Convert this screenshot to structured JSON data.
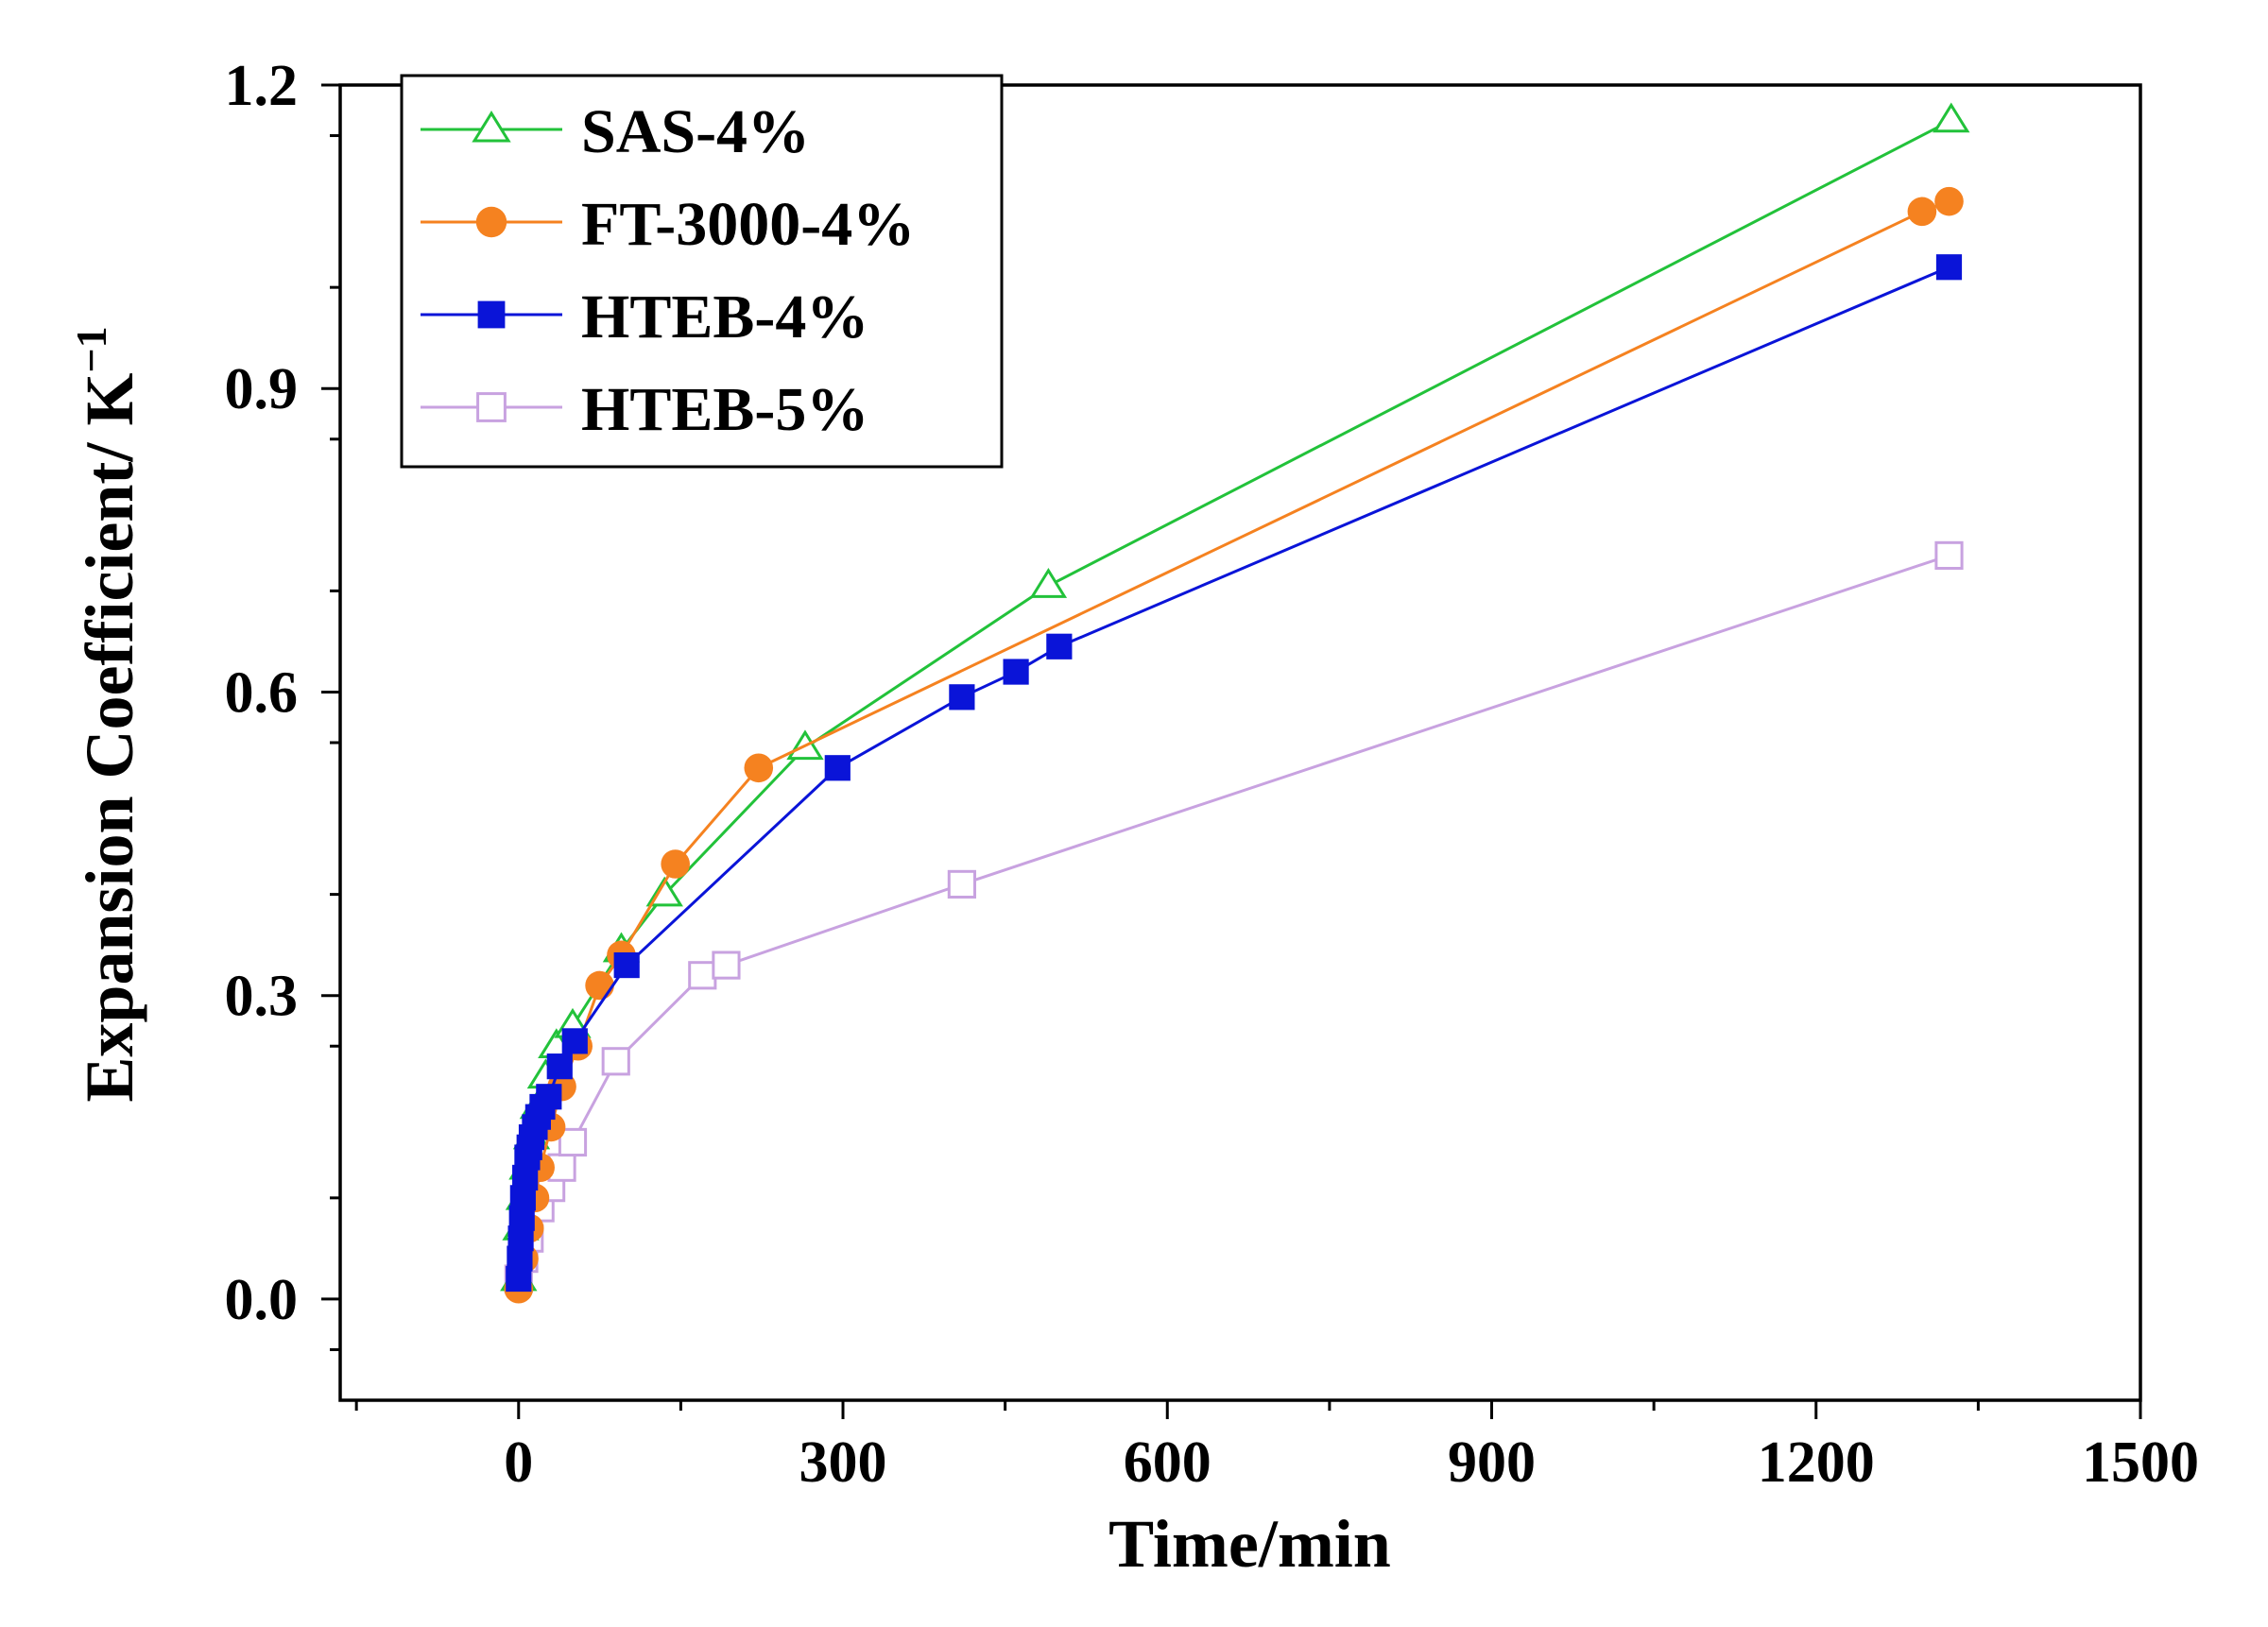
{
  "chart_data": {
    "type": "line",
    "title": "",
    "xlabel": "Time/min",
    "ylabel_main": "Expansion Coefficient/ K",
    "ylabel_sup": "−1",
    "xlim": [
      -165,
      1500
    ],
    "ylim": [
      -0.1,
      1.2
    ],
    "x_ticks": [
      0,
      300,
      600,
      900,
      1200,
      1500
    ],
    "y_ticks": [
      0.0,
      0.3,
      0.6,
      0.9,
      1.2
    ],
    "x_tick_labels": [
      "0",
      "300",
      "600",
      "900",
      "1200",
      "1500"
    ],
    "y_tick_labels": [
      "0.0",
      "0.3",
      "0.6",
      "0.9",
      "1.2"
    ],
    "legend_position": "top-left",
    "series": [
      {
        "name": "SAS-4%",
        "color": "#22c23a",
        "marker": "triangle-open",
        "x": [
          0,
          2,
          5,
          8,
          12,
          18,
          25,
          35,
          50,
          95,
          135,
          265,
          490,
          1325
        ],
        "y": [
          0.02,
          0.07,
          0.1,
          0.13,
          0.16,
          0.19,
          0.22,
          0.25,
          0.27,
          0.345,
          0.4,
          0.545,
          0.705,
          1.165
        ]
      },
      {
        "name": "FT-3000-4%",
        "color": "#f58220",
        "marker": "circle-filled",
        "x": [
          0,
          5,
          10,
          15,
          20,
          30,
          40,
          55,
          75,
          95,
          145,
          222,
          1298,
          1323
        ],
        "y": [
          0.01,
          0.04,
          0.07,
          0.1,
          0.13,
          0.17,
          0.21,
          0.25,
          0.31,
          0.34,
          0.43,
          0.525,
          1.075,
          1.085
        ]
      },
      {
        "name": "HTEB-4%",
        "color": "#0a14d8",
        "marker": "square-filled",
        "x": [
          0,
          1,
          2,
          3,
          4,
          6,
          8,
          10,
          12,
          15,
          18,
          22,
          28,
          38,
          52,
          100,
          295,
          410,
          460,
          500,
          1323
        ],
        "y": [
          0.02,
          0.04,
          0.06,
          0.08,
          0.1,
          0.12,
          0.14,
          0.15,
          0.16,
          0.17,
          0.18,
          0.19,
          0.2,
          0.23,
          0.255,
          0.33,
          0.525,
          0.595,
          0.62,
          0.645,
          1.02
        ]
      },
      {
        "name": "HTEB-5%",
        "color": "#c8a2e0",
        "marker": "square-open",
        "x": [
          0,
          5,
          10,
          20,
          30,
          40,
          50,
          90,
          170,
          192,
          410,
          1323
        ],
        "y": [
          0.02,
          0.04,
          0.06,
          0.09,
          0.11,
          0.13,
          0.155,
          0.235,
          0.32,
          0.33,
          0.41,
          0.735
        ]
      }
    ]
  }
}
